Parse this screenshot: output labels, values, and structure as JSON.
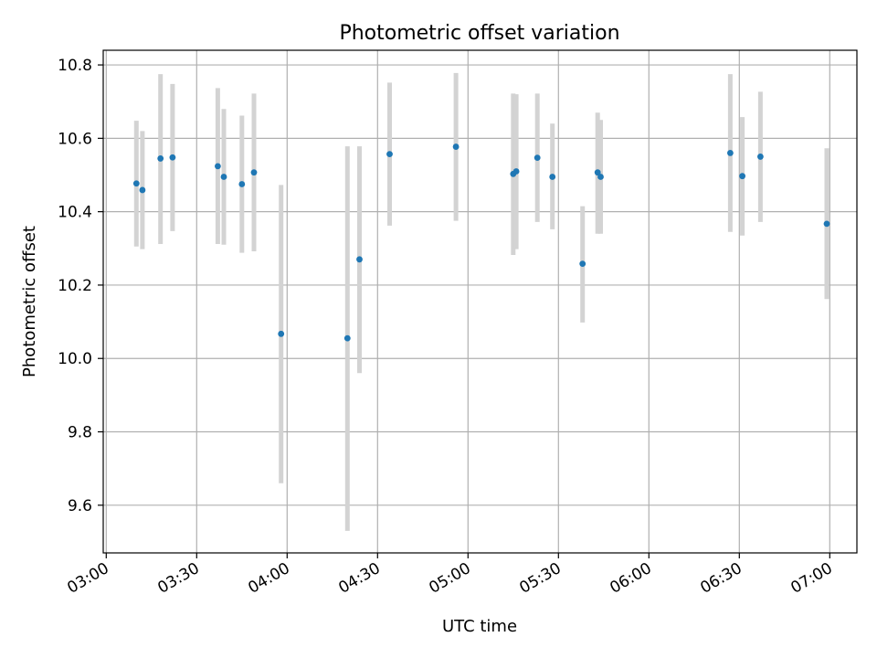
{
  "chart_data": {
    "type": "scatter",
    "title": "Photometric offset variation",
    "xlabel": "UTC time",
    "ylabel": "Photometric offset",
    "x_unit": "UTC time (HH:MM)",
    "xlim": [
      "02:59",
      "07:09"
    ],
    "ylim": [
      9.47,
      10.84
    ],
    "x_ticks": [
      "03:00",
      "03:30",
      "04:00",
      "04:30",
      "05:00",
      "05:30",
      "06:00",
      "06:30",
      "07:00"
    ],
    "y_ticks": [
      9.6,
      9.8,
      10.0,
      10.2,
      10.4,
      10.6,
      10.8
    ],
    "y_tick_labels": [
      "9.6",
      "9.8",
      "10.0",
      "10.2",
      "10.4",
      "10.6",
      "10.8"
    ],
    "grid": true,
    "colors": {
      "points": "#1f77b4",
      "error_bars": "#d3d3d3",
      "grid": "#b0b0b0"
    },
    "series": [
      {
        "error_bars": true,
        "points": [
          {
            "x": "03:10",
            "y": 10.477,
            "err_low": 10.305,
            "err_high": 10.648
          },
          {
            "x": "03:12",
            "y": 10.459,
            "err_low": 10.298,
            "err_high": 10.62
          },
          {
            "x": "03:18",
            "y": 10.545,
            "err_low": 10.312,
            "err_high": 10.775
          },
          {
            "x": "03:22",
            "y": 10.548,
            "err_low": 10.347,
            "err_high": 10.748
          },
          {
            "x": "03:37",
            "y": 10.524,
            "err_low": 10.312,
            "err_high": 10.737
          },
          {
            "x": "03:39",
            "y": 10.495,
            "err_low": 10.31,
            "err_high": 10.68
          },
          {
            "x": "03:45",
            "y": 10.475,
            "err_low": 10.288,
            "err_high": 10.662
          },
          {
            "x": "03:49",
            "y": 10.507,
            "err_low": 10.292,
            "err_high": 10.722
          },
          {
            "x": "03:58",
            "y": 10.067,
            "err_low": 9.66,
            "err_high": 10.473
          },
          {
            "x": "04:20",
            "y": 10.055,
            "err_low": 9.53,
            "err_high": 10.578
          },
          {
            "x": "04:24",
            "y": 10.27,
            "err_low": 9.96,
            "err_high": 10.578
          },
          {
            "x": "04:34",
            "y": 10.557,
            "err_low": 10.362,
            "err_high": 10.752
          },
          {
            "x": "04:56",
            "y": 10.577,
            "err_low": 10.375,
            "err_high": 10.778
          },
          {
            "x": "05:15",
            "y": 10.503,
            "err_low": 10.282,
            "err_high": 10.722
          },
          {
            "x": "05:16",
            "y": 10.51,
            "err_low": 10.298,
            "err_high": 10.72
          },
          {
            "x": "05:23",
            "y": 10.547,
            "err_low": 10.372,
            "err_high": 10.722
          },
          {
            "x": "05:28",
            "y": 10.495,
            "err_low": 10.352,
            "err_high": 10.64
          },
          {
            "x": "05:38",
            "y": 10.258,
            "err_low": 10.098,
            "err_high": 10.415
          },
          {
            "x": "05:43",
            "y": 10.507,
            "err_low": 10.34,
            "err_high": 10.67
          },
          {
            "x": "05:44",
            "y": 10.495,
            "err_low": 10.34,
            "err_high": 10.65
          },
          {
            "x": "06:27",
            "y": 10.56,
            "err_low": 10.345,
            "err_high": 10.775
          },
          {
            "x": "06:31",
            "y": 10.497,
            "err_low": 10.335,
            "err_high": 10.658
          },
          {
            "x": "06:37",
            "y": 10.55,
            "err_low": 10.372,
            "err_high": 10.727
          },
          {
            "x": "06:59",
            "y": 10.367,
            "err_low": 10.162,
            "err_high": 10.573
          }
        ]
      }
    ]
  }
}
